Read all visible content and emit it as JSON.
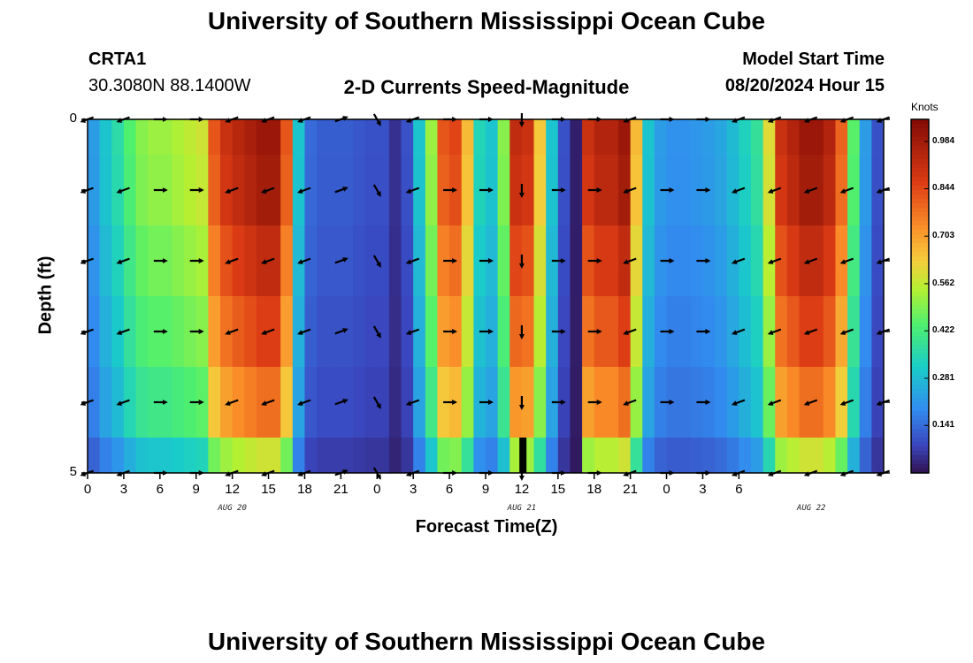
{
  "chart_data": {
    "type": "heatmap",
    "title": "University of Southern Mississippi Ocean Cube",
    "station": "CRTA1",
    "location": "30.3080N  88.1400W",
    "subtitle": "2-D Currents Speed-Magnitude",
    "model_start_label": "Model Start Time",
    "model_start": "08/20/2024 Hour 15",
    "xlabel": "Forecast Time(Z)",
    "ylabel": "Depth (ft)",
    "y_ticks": [
      "0",
      "5"
    ],
    "ylim": [
      0,
      5
    ],
    "x_ticks": [
      "0",
      "3",
      "6",
      "9",
      "12",
      "15",
      "18",
      "21",
      "0",
      "3",
      "6",
      "9",
      "12",
      "15",
      "18",
      "21",
      "0",
      "3",
      "6"
    ],
    "date_labels": [
      {
        "label": "AUG 20",
        "hour": 12
      },
      {
        "label": "AUG 21",
        "hour": 36
      },
      {
        "label": "AUG 22",
        "hour": 60
      }
    ],
    "colorbar_unit": "Knots",
    "colorbar_ticks": [
      "0.984",
      "0.844",
      "0.703",
      "0.562",
      "0.422",
      "0.281",
      "0.141"
    ],
    "colorbar_tick_values": [
      0.984,
      0.844,
      0.703,
      0.562,
      0.422,
      0.281,
      0.141
    ],
    "color_range": [
      0,
      1.05
    ],
    "time_hours": [
      0,
      1,
      2,
      3,
      4,
      5,
      6,
      7,
      8,
      9,
      10,
      11,
      12,
      13,
      14,
      15,
      16,
      17,
      18,
      19,
      20,
      21,
      22,
      23,
      24,
      25,
      26,
      27,
      28,
      29,
      30,
      31,
      32,
      33,
      34,
      35,
      36,
      37,
      38,
      39,
      40,
      41,
      42,
      43,
      44,
      45,
      46,
      47,
      48,
      49,
      50,
      51,
      52,
      53,
      54,
      55,
      56,
      57,
      58,
      59,
      60,
      61,
      62,
      63,
      64,
      65
    ],
    "speed_profile_knots": [
      0.22,
      0.3,
      0.36,
      0.44,
      0.5,
      0.52,
      0.52,
      0.54,
      0.56,
      0.58,
      0.82,
      0.9,
      0.94,
      0.97,
      1.0,
      1.0,
      0.82,
      0.3,
      0.14,
      0.12,
      0.12,
      0.12,
      0.11,
      0.1,
      0.1,
      0.05,
      0.1,
      0.3,
      0.52,
      0.82,
      0.85,
      0.66,
      0.34,
      0.3,
      0.5,
      0.92,
      0.9,
      0.64,
      0.3,
      0.1,
      0.02,
      0.9,
      0.95,
      0.95,
      1.0,
      0.66,
      0.3,
      0.22,
      0.2,
      0.2,
      0.21,
      0.22,
      0.24,
      0.28,
      0.33,
      0.38,
      0.6,
      0.9,
      0.95,
      1.0,
      1.0,
      0.95,
      0.8,
      0.45,
      0.22,
      0.1
    ],
    "layer_factors": [
      1.0,
      0.98,
      0.92,
      0.86,
      0.78,
      0.58
    ],
    "arrow_hours": [
      0,
      3,
      6,
      9,
      12,
      15,
      18,
      21,
      24,
      27,
      30,
      33,
      36,
      39,
      42,
      45,
      48,
      51,
      54,
      57,
      60,
      63,
      66
    ],
    "arrow_depths": [
      0,
      1,
      2,
      3,
      4,
      5
    ],
    "arrow_direction_deg": [
      200,
      200,
      0,
      0,
      200,
      200,
      200,
      20,
      300,
      200,
      0,
      0,
      270,
      0,
      0,
      200,
      0,
      0,
      200,
      200,
      200,
      200,
      200
    ]
  }
}
